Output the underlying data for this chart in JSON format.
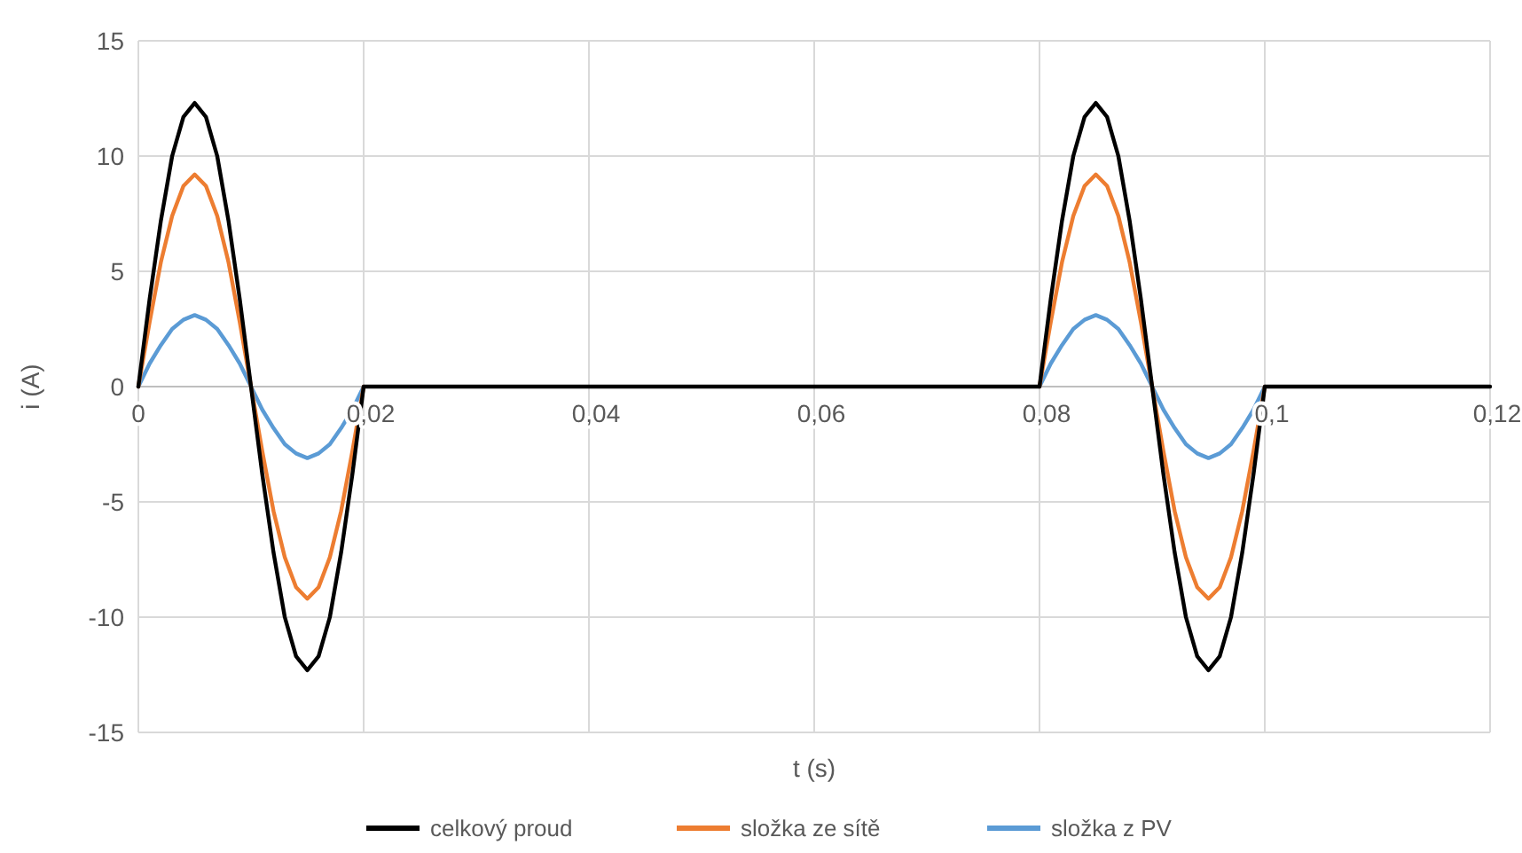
{
  "chart_data": {
    "type": "line",
    "xlabel": "t (s)",
    "ylabel": "i (A)",
    "xlim": [
      0,
      0.12
    ],
    "ylim": [
      -15,
      15
    ],
    "xticks": [
      0,
      {
        "value": 0.02,
        "label": "0,02"
      },
      {
        "value": 0.04,
        "label": "0,04"
      },
      {
        "value": 0.06,
        "label": "0,06"
      },
      {
        "value": 0.08,
        "label": "0,08"
      },
      {
        "value": 0.1,
        "label": "0,1"
      },
      {
        "value": 0.12,
        "label": "0,12"
      }
    ],
    "yticks": [
      -15,
      -10,
      -5,
      0,
      5,
      10,
      15
    ],
    "grid": true,
    "legend": "bottom",
    "marker": "none",
    "line_style": "solid",
    "series": [
      {
        "name": "celkový proud",
        "color": "#000000",
        "x": [
          0,
          0.001,
          0.002,
          0.003,
          0.004,
          0.005,
          0.006,
          0.007,
          0.008,
          0.009,
          0.01,
          0.011,
          0.012,
          0.013,
          0.014,
          0.015,
          0.016,
          0.017,
          0.018,
          0.019,
          0.02,
          0.08,
          0.081,
          0.082,
          0.083,
          0.084,
          0.085,
          0.086,
          0.087,
          0.088,
          0.089,
          0.09,
          0.091,
          0.092,
          0.093,
          0.094,
          0.095,
          0.096,
          0.097,
          0.098,
          0.099,
          0.1,
          0.12
        ],
        "values": [
          0,
          3.8,
          7.2,
          10,
          11.7,
          12.3,
          11.7,
          10,
          7.2,
          3.8,
          0,
          -3.8,
          -7.2,
          -10,
          -11.7,
          -12.3,
          -11.7,
          -10,
          -7.2,
          -3.8,
          0,
          0,
          3.8,
          7.2,
          10,
          11.7,
          12.3,
          11.7,
          10,
          7.2,
          3.8,
          0,
          -3.8,
          -7.2,
          -10,
          -11.7,
          -12.3,
          -11.7,
          -10,
          -7.2,
          -3.8,
          0,
          0
        ]
      },
      {
        "name": "složka ze sítě",
        "color": "#ed7d31",
        "x": [
          0,
          0.001,
          0.002,
          0.003,
          0.004,
          0.005,
          0.006,
          0.007,
          0.008,
          0.009,
          0.01,
          0.011,
          0.012,
          0.013,
          0.014,
          0.015,
          0.016,
          0.017,
          0.018,
          0.019,
          0.02,
          0.05,
          0.08,
          0.081,
          0.082,
          0.083,
          0.084,
          0.085,
          0.086,
          0.087,
          0.088,
          0.089,
          0.09,
          0.091,
          0.092,
          0.093,
          0.094,
          0.095,
          0.096,
          0.097,
          0.098,
          0.099,
          0.1
        ],
        "values": [
          0,
          2.8,
          5.4,
          7.4,
          8.7,
          9.2,
          8.7,
          7.4,
          5.4,
          2.8,
          0,
          -2.8,
          -5.4,
          -7.4,
          -8.7,
          -9.2,
          -8.7,
          -7.4,
          -5.4,
          -2.8,
          0,
          null,
          0,
          2.8,
          5.4,
          7.4,
          8.7,
          9.2,
          8.7,
          7.4,
          5.4,
          2.8,
          0,
          -2.8,
          -5.4,
          -7.4,
          -8.7,
          -9.2,
          -8.7,
          -7.4,
          -5.4,
          -2.8,
          0
        ]
      },
      {
        "name": "složka z PV",
        "color": "#5b9bd5",
        "x": [
          0,
          0.001,
          0.002,
          0.003,
          0.004,
          0.005,
          0.006,
          0.007,
          0.008,
          0.009,
          0.01,
          0.011,
          0.012,
          0.013,
          0.014,
          0.015,
          0.016,
          0.017,
          0.018,
          0.019,
          0.02,
          0.05,
          0.08,
          0.081,
          0.082,
          0.083,
          0.084,
          0.085,
          0.086,
          0.087,
          0.088,
          0.089,
          0.09,
          0.091,
          0.092,
          0.093,
          0.094,
          0.095,
          0.096,
          0.097,
          0.098,
          0.099,
          0.1
        ],
        "values": [
          0,
          1,
          1.8,
          2.5,
          2.9,
          3.1,
          2.9,
          2.5,
          1.8,
          1,
          0,
          -1,
          -1.8,
          -2.5,
          -2.9,
          -3.1,
          -2.9,
          -2.5,
          -1.8,
          -1,
          0,
          null,
          0,
          1,
          1.8,
          2.5,
          2.9,
          3.1,
          2.9,
          2.5,
          1.8,
          1,
          0,
          -1,
          -1.8,
          -2.5,
          -2.9,
          -3.1,
          -2.9,
          -2.5,
          -1.8,
          -1,
          0
        ]
      }
    ]
  }
}
